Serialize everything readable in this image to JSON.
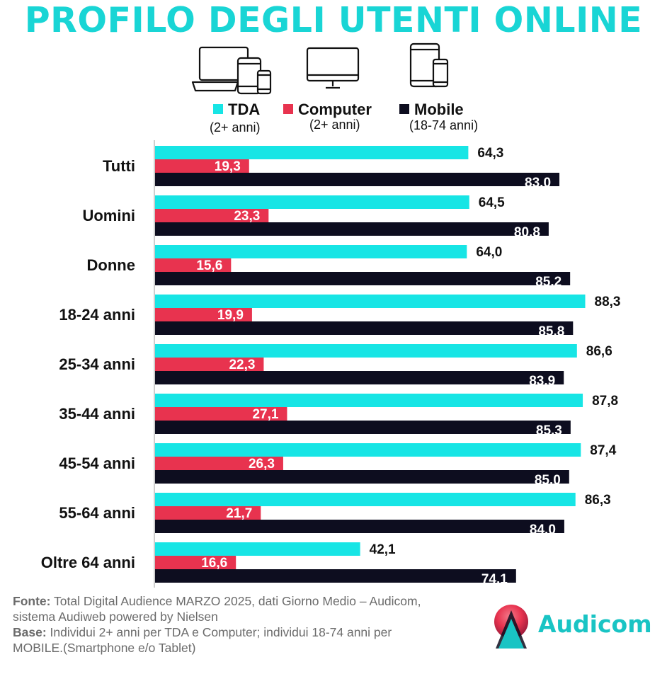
{
  "title": "PROFILO DEGLI UTENTI ONLINE",
  "icons": [
    "laptop-phone-icon",
    "desktop-monitor-icon",
    "tablet-phone-icon"
  ],
  "legend": [
    {
      "label": "TDA",
      "sub": "(2+ anni)",
      "color": "#17e5e5"
    },
    {
      "label": "Computer",
      "sub": "(2+ anni)",
      "color": "#e8334f"
    },
    {
      "label": "Mobile",
      "sub": "(18-74 anni)",
      "color": "#0d0d1f"
    }
  ],
  "chart_data": {
    "type": "bar",
    "orientation": "horizontal",
    "categories": [
      "Tutti",
      "Uomini",
      "Donne",
      "18-24 anni",
      "25-34 anni",
      "35-44 anni",
      "45-54 anni",
      "55-64 anni",
      "Oltre 64 anni"
    ],
    "series": [
      {
        "name": "TDA",
        "color": "#17e5e5",
        "values": [
          64.3,
          64.5,
          64.0,
          88.3,
          86.6,
          87.8,
          87.4,
          86.3,
          42.1
        ],
        "labels": [
          "64,3",
          "64,5",
          "64,0",
          "88,3",
          "86,6",
          "87,8",
          "87,4",
          "86,3",
          "42,1"
        ]
      },
      {
        "name": "Computer",
        "color": "#e8334f",
        "values": [
          19.3,
          23.3,
          15.6,
          19.9,
          22.3,
          27.1,
          26.3,
          21.7,
          16.6
        ],
        "labels": [
          "19,3",
          "23,3",
          "15,6",
          "19,9",
          "22,3",
          "27,1",
          "26,3",
          "21,7",
          "16,6"
        ]
      },
      {
        "name": "Mobile",
        "color": "#0d0d1f",
        "values": [
          83.0,
          80.8,
          85.2,
          85.8,
          83.9,
          85.3,
          85.0,
          84.0,
          74.1
        ],
        "labels": [
          "83.0",
          "80.8",
          "85.2",
          "85.8",
          "83.9",
          "85.3",
          "85.0",
          "84.0",
          "74.1"
        ]
      }
    ],
    "xlim": [
      0,
      100
    ],
    "grid": false,
    "legend_position": "top"
  },
  "source": {
    "fonte_label": "Fonte:",
    "fonte_text": " Total Digital Audience MARZO 2025, dati Giorno Medio – Audicom, sistema Audiweb powered by Nielsen",
    "base_label": "Base:",
    "base_text": "  Individui 2+ anni per TDA e Computer; individui 18-74 anni per MOBILE.(Smartphone e/o Tablet)"
  },
  "logo": {
    "name": "Audicom",
    "colors": [
      "#e8334f",
      "#19c4c4",
      "#0d0d1f"
    ]
  }
}
